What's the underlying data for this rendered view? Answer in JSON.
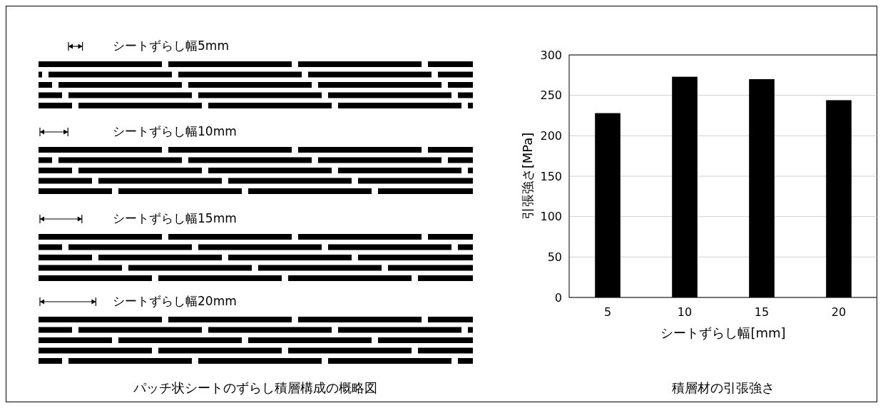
{
  "chart_data": [
    {
      "type": "other",
      "title": "パッチ状シートのずらし積層構成の概略図",
      "annotations": [
        "シートずらし幅5mm",
        "シートずらし幅10mm",
        "シートずらし幅15mm",
        "シートずらし幅20mm"
      ]
    },
    {
      "type": "bar",
      "title": "積層材の引張強さ",
      "xlabel": "シートずらし幅[mm]",
      "ylabel": "引張強さ[MPa]",
      "categories": [
        "5",
        "10",
        "15",
        "20"
      ],
      "values": [
        228,
        273,
        270,
        244
      ],
      "color": "#000000",
      "ylim": [
        0,
        300
      ],
      "yticks": [
        0,
        50,
        100,
        150,
        200,
        250,
        300
      ],
      "grid": "y"
    }
  ]
}
